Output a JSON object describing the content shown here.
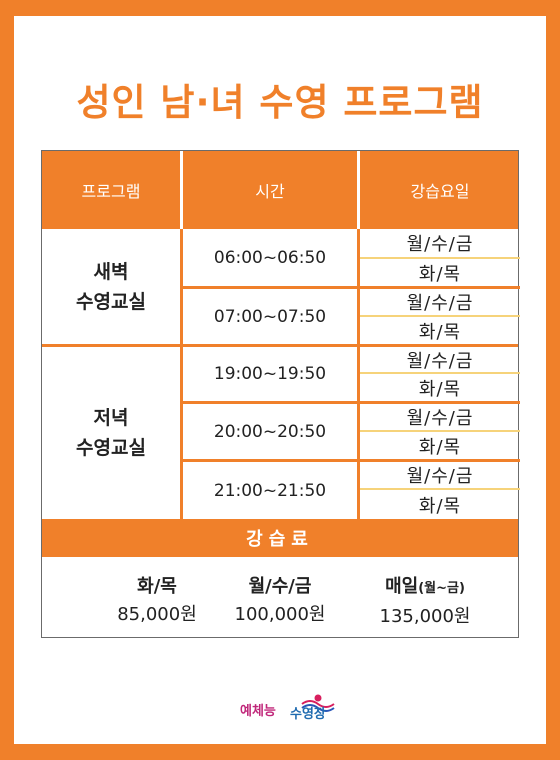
{
  "title": "성인 남·녀 수영 프로그램",
  "headers": [
    "프로그램",
    "시간",
    "강습요일"
  ],
  "programs": [
    {
      "line1": "새벽",
      "line2": "수영교실"
    },
    {
      "line1": "저녁",
      "line2": "수영교실"
    }
  ],
  "slots": [
    {
      "time": "06:00~06:50",
      "days_a": "월/수/금",
      "days_b": "화/목"
    },
    {
      "time": "07:00~07:50",
      "days_a": "월/수/금",
      "days_b": "화/목"
    },
    {
      "time": "19:00~19:50",
      "days_a": "월/수/금",
      "days_b": "화/목"
    },
    {
      "time": "20:00~20:50",
      "days_a": "월/수/금",
      "days_b": "화/목"
    },
    {
      "time": "21:00~21:50",
      "days_a": "월/수/금",
      "days_b": "화/목"
    }
  ],
  "fee_label": "강습료",
  "fees": [
    {
      "days": "화/목",
      "days_note": "",
      "price": "85,000원"
    },
    {
      "days": "월/수/금",
      "days_note": "",
      "price": "100,000원"
    },
    {
      "days": "매일",
      "days_note": "(월~금)",
      "price": "135,000원"
    }
  ],
  "logo": {
    "part1": "예체능",
    "part2": "수영장"
  },
  "colors": {
    "accent": "#f0802a",
    "divider": "#f6d37a"
  }
}
